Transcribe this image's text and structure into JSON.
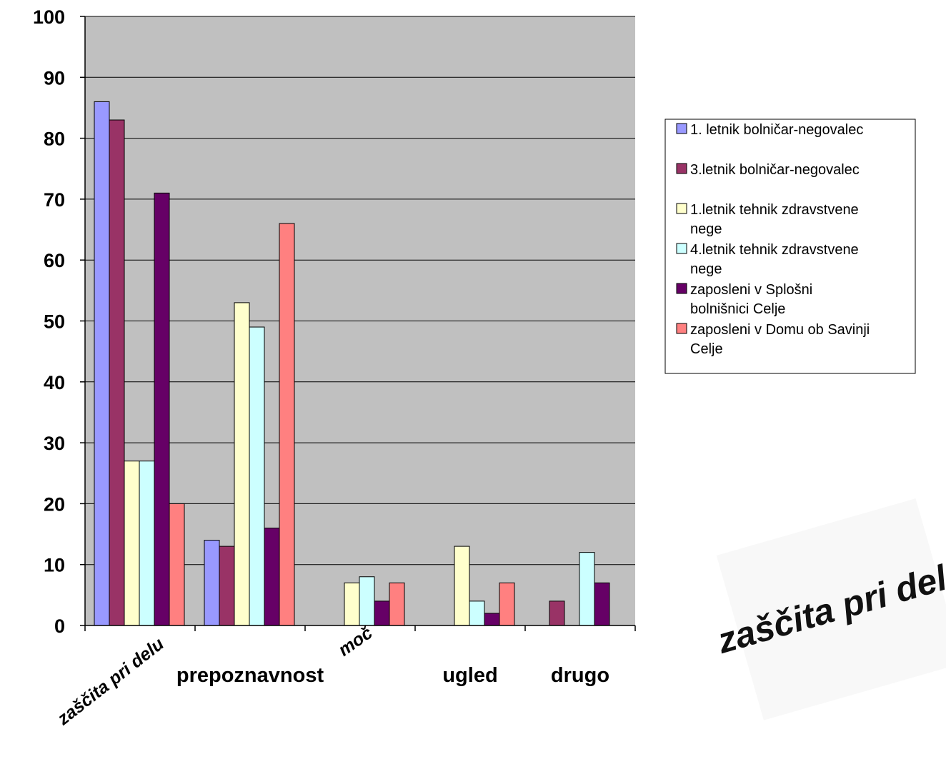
{
  "chart_data": {
    "type": "bar",
    "categories": [
      "zaščita pri delu",
      "prepoznavnost",
      "moč",
      "ugled",
      "drugo"
    ],
    "series": [
      {
        "name": "1. letnik bolničar-negovalec",
        "values": [
          86,
          14,
          null,
          null,
          null
        ],
        "color": "#9999FF"
      },
      {
        "name": "3.letnik bolničar-negovalec",
        "values": [
          83,
          13,
          null,
          null,
          4
        ],
        "color": "#993366"
      },
      {
        "name": "1.letnik tehnik zdravstvene nege",
        "values": [
          27,
          53,
          7,
          13,
          null
        ],
        "color": "#FFFFCC"
      },
      {
        "name": "4.letnik tehnik zdravstvene nege",
        "values": [
          27,
          49,
          8,
          4,
          12
        ],
        "color": "#CCFFFF"
      },
      {
        "name": "zaposleni v Splošni bolnišnici Celje",
        "values": [
          71,
          16,
          4,
          2,
          7
        ],
        "color": "#660066"
      },
      {
        "name": "zaposleni v Domu ob Savinji Celje",
        "values": [
          20,
          66,
          7,
          7,
          null
        ],
        "color": "#FF8080"
      }
    ],
    "yticks": [
      "0",
      "10",
      "20",
      "30",
      "40",
      "50",
      "60",
      "70",
      "80",
      "90",
      "100"
    ],
    "ylim": [
      0,
      100
    ],
    "grid": true,
    "plot_background": "#C0C0C0",
    "legend_position": "right",
    "xlabel": "",
    "ylabel": "",
    "title": ""
  },
  "stamp_text": "zaščita pri delu"
}
